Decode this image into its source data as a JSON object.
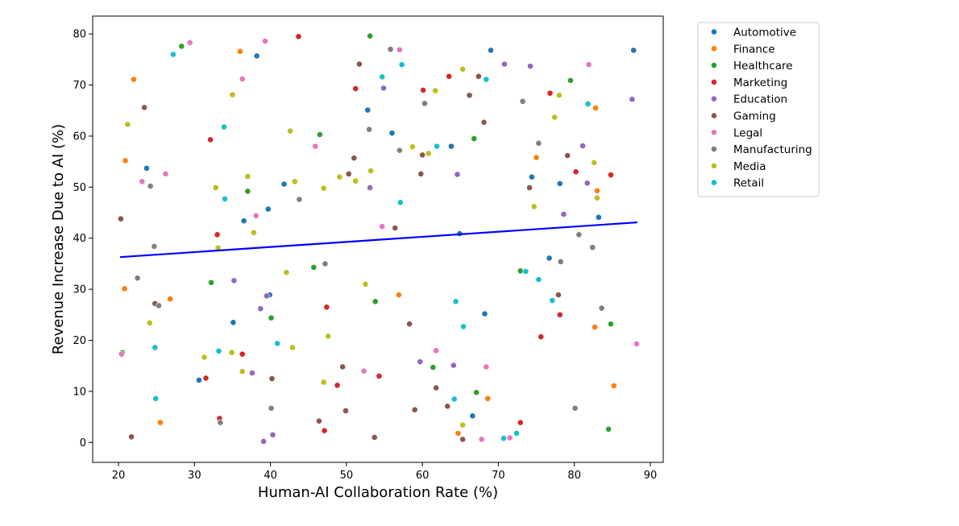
{
  "chart_data": {
    "type": "scatter",
    "xlabel": "Human-AI Collaboration Rate (%)",
    "ylabel": "Revenue Increase Due to AI (%)",
    "xlim": [
      16.6,
      91.7
    ],
    "ylim": [
      -3.9,
      83.5
    ],
    "xticks": [
      20,
      30,
      40,
      50,
      60,
      70,
      80,
      90
    ],
    "yticks": [
      0,
      10,
      20,
      30,
      40,
      50,
      60,
      70,
      80
    ],
    "grid": false,
    "legend_position": "outside-top-right",
    "trendline": {
      "color": "#0000ff",
      "x": [
        20.2,
        88.3
      ],
      "y": [
        36.3,
        43.1
      ]
    },
    "series": [
      {
        "name": "Automotive",
        "color": "#1f77b4",
        "points": [
          [
            23.7,
            53.7
          ],
          [
            38.2,
            75.7
          ],
          [
            36.5,
            43.4
          ],
          [
            41.8,
            50.6
          ],
          [
            39.7,
            45.7
          ],
          [
            39.9,
            28.9
          ],
          [
            35.1,
            23.5
          ],
          [
            30.6,
            12.2
          ],
          [
            52.8,
            65.1
          ],
          [
            56.0,
            60.6
          ],
          [
            63.8,
            58.0
          ],
          [
            69.0,
            76.8
          ],
          [
            74.4,
            52.0
          ],
          [
            78.1,
            50.7
          ],
          [
            83.2,
            44.1
          ],
          [
            87.8,
            76.8
          ],
          [
            64.9,
            40.9
          ],
          [
            76.7,
            36.1
          ],
          [
            68.2,
            25.2
          ],
          [
            66.6,
            5.2
          ]
        ]
      },
      {
        "name": "Finance",
        "color": "#ff7f0e",
        "points": [
          [
            22.0,
            71.1
          ],
          [
            20.9,
            55.2
          ],
          [
            20.8,
            30.1
          ],
          [
            26.8,
            28.1
          ],
          [
            25.5,
            3.9
          ],
          [
            36.0,
            76.6
          ],
          [
            56.9,
            28.9
          ],
          [
            64.7,
            1.8
          ],
          [
            68.6,
            8.6
          ],
          [
            75.0,
            55.8
          ],
          [
            82.8,
            65.5
          ],
          [
            83.0,
            49.3
          ],
          [
            82.7,
            22.6
          ],
          [
            85.2,
            11.1
          ]
        ]
      },
      {
        "name": "Healthcare",
        "color": "#2ca02c",
        "points": [
          [
            28.3,
            77.6
          ],
          [
            20.5,
            17.6
          ],
          [
            32.2,
            31.3
          ],
          [
            37.0,
            49.2
          ],
          [
            40.1,
            24.4
          ],
          [
            45.7,
            34.3
          ],
          [
            46.5,
            60.3
          ],
          [
            53.1,
            79.6
          ],
          [
            53.8,
            27.6
          ],
          [
            61.4,
            14.7
          ],
          [
            66.8,
            59.5
          ],
          [
            67.1,
            9.8
          ],
          [
            72.9,
            33.6
          ],
          [
            79.5,
            70.9
          ],
          [
            84.8,
            23.2
          ],
          [
            84.5,
            2.6
          ]
        ]
      },
      {
        "name": "Marketing",
        "color": "#d62728",
        "points": [
          [
            32.1,
            59.3
          ],
          [
            33.0,
            40.7
          ],
          [
            31.5,
            12.6
          ],
          [
            33.3,
            4.7
          ],
          [
            36.3,
            17.3
          ],
          [
            43.7,
            79.5
          ],
          [
            47.4,
            26.5
          ],
          [
            48.8,
            11.2
          ],
          [
            47.1,
            2.3
          ],
          [
            51.2,
            69.3
          ],
          [
            54.3,
            13.0
          ],
          [
            60.1,
            69.0
          ],
          [
            63.5,
            71.7
          ],
          [
            72.9,
            3.9
          ],
          [
            75.6,
            20.7
          ],
          [
            76.8,
            68.4
          ],
          [
            78.1,
            25.0
          ],
          [
            80.2,
            53.0
          ],
          [
            84.8,
            52.4
          ]
        ]
      },
      {
        "name": "Education",
        "color": "#9467bd",
        "points": [
          [
            35.2,
            31.7
          ],
          [
            37.6,
            13.6
          ],
          [
            38.7,
            26.2
          ],
          [
            39.5,
            28.7
          ],
          [
            40.3,
            1.5
          ],
          [
            39.1,
            0.2
          ],
          [
            53.1,
            49.9
          ],
          [
            54.9,
            69.4
          ],
          [
            59.7,
            15.8
          ],
          [
            64.1,
            15.1
          ],
          [
            64.6,
            52.5
          ],
          [
            70.8,
            74.1
          ],
          [
            74.2,
            73.7
          ],
          [
            78.6,
            44.7
          ],
          [
            81.1,
            58.1
          ],
          [
            81.7,
            50.8
          ],
          [
            87.6,
            67.2
          ]
        ]
      },
      {
        "name": "Gaming",
        "color": "#8c564b",
        "points": [
          [
            23.4,
            65.6
          ],
          [
            20.3,
            43.8
          ],
          [
            24.8,
            27.2
          ],
          [
            21.7,
            1.1
          ],
          [
            40.2,
            12.5
          ],
          [
            46.4,
            4.2
          ],
          [
            49.5,
            14.8
          ],
          [
            49.9,
            6.2
          ],
          [
            50.3,
            52.6
          ],
          [
            51.0,
            55.7
          ],
          [
            51.7,
            74.1
          ],
          [
            53.7,
            1.0
          ],
          [
            56.4,
            42.0
          ],
          [
            58.3,
            23.2
          ],
          [
            59.0,
            6.4
          ],
          [
            59.8,
            52.6
          ],
          [
            60.0,
            56.3
          ],
          [
            61.8,
            10.7
          ],
          [
            63.3,
            7.1
          ],
          [
            65.3,
            0.6
          ],
          [
            66.2,
            68.0
          ],
          [
            67.4,
            71.7
          ],
          [
            68.1,
            62.7
          ],
          [
            74.1,
            49.9
          ],
          [
            77.9,
            28.9
          ],
          [
            79.1,
            56.2
          ]
        ]
      },
      {
        "name": "Legal",
        "color": "#e377c2",
        "points": [
          [
            20.4,
            17.3
          ],
          [
            23.1,
            51.1
          ],
          [
            26.2,
            52.6
          ],
          [
            29.4,
            78.3
          ],
          [
            36.3,
            71.2
          ],
          [
            38.1,
            44.4
          ],
          [
            39.3,
            78.6
          ],
          [
            45.9,
            58.0
          ],
          [
            52.3,
            14.0
          ],
          [
            54.7,
            42.3
          ],
          [
            57.0,
            76.9
          ],
          [
            61.8,
            18.0
          ],
          [
            67.8,
            0.6
          ],
          [
            68.4,
            14.8
          ],
          [
            71.5,
            0.9
          ],
          [
            81.9,
            74.0
          ],
          [
            88.2,
            19.3
          ]
        ]
      },
      {
        "name": "Manufacturing",
        "color": "#7f7f7f",
        "points": [
          [
            22.5,
            32.2
          ],
          [
            24.2,
            50.2
          ],
          [
            24.7,
            38.4
          ],
          [
            25.3,
            26.8
          ],
          [
            33.4,
            3.9
          ],
          [
            40.1,
            6.7
          ],
          [
            43.8,
            47.6
          ],
          [
            47.2,
            35.0
          ],
          [
            53.0,
            61.3
          ],
          [
            55.8,
            77.0
          ],
          [
            57.0,
            57.2
          ],
          [
            60.3,
            66.4
          ],
          [
            73.2,
            66.8
          ],
          [
            75.3,
            58.6
          ],
          [
            78.2,
            35.4
          ],
          [
            80.1,
            6.7
          ],
          [
            80.6,
            40.7
          ],
          [
            82.4,
            38.2
          ],
          [
            83.6,
            26.3
          ]
        ]
      },
      {
        "name": "Media",
        "color": "#bcbd22",
        "points": [
          [
            21.2,
            62.3
          ],
          [
            24.1,
            23.4
          ],
          [
            31.3,
            16.7
          ],
          [
            32.8,
            49.9
          ],
          [
            33.1,
            38.1
          ],
          [
            35.0,
            68.1
          ],
          [
            34.9,
            17.6
          ],
          [
            36.3,
            13.9
          ],
          [
            37.0,
            52.1
          ],
          [
            37.8,
            41.1
          ],
          [
            42.1,
            33.3
          ],
          [
            42.6,
            61.0
          ],
          [
            43.2,
            51.1
          ],
          [
            42.9,
            18.6
          ],
          [
            47.0,
            49.8
          ],
          [
            47.6,
            20.8
          ],
          [
            47.0,
            11.8
          ],
          [
            49.1,
            52.0
          ],
          [
            51.2,
            51.2
          ],
          [
            52.5,
            31.0
          ],
          [
            53.2,
            53.2
          ],
          [
            58.7,
            57.9
          ],
          [
            60.8,
            56.6
          ],
          [
            61.7,
            68.9
          ],
          [
            65.3,
            73.1
          ],
          [
            65.3,
            3.4
          ],
          [
            74.7,
            46.2
          ],
          [
            77.4,
            63.7
          ],
          [
            78.0,
            68.0
          ],
          [
            82.6,
            54.8
          ],
          [
            83.0,
            47.9
          ]
        ]
      },
      {
        "name": "Retail",
        "color": "#17becf",
        "points": [
          [
            27.2,
            76.0
          ],
          [
            33.9,
            61.8
          ],
          [
            34.0,
            47.7
          ],
          [
            33.2,
            17.9
          ],
          [
            24.8,
            18.6
          ],
          [
            24.9,
            8.6
          ],
          [
            40.9,
            19.4
          ],
          [
            54.7,
            71.6
          ],
          [
            57.3,
            74.0
          ],
          [
            57.1,
            47.0
          ],
          [
            61.9,
            58.0
          ],
          [
            64.4,
            27.6
          ],
          [
            65.4,
            22.7
          ],
          [
            64.2,
            8.5
          ],
          [
            68.4,
            71.1
          ],
          [
            70.7,
            0.8
          ],
          [
            72.4,
            1.8
          ],
          [
            73.6,
            33.5
          ],
          [
            75.3,
            31.9
          ],
          [
            77.1,
            27.8
          ],
          [
            81.8,
            66.3
          ]
        ]
      }
    ]
  }
}
